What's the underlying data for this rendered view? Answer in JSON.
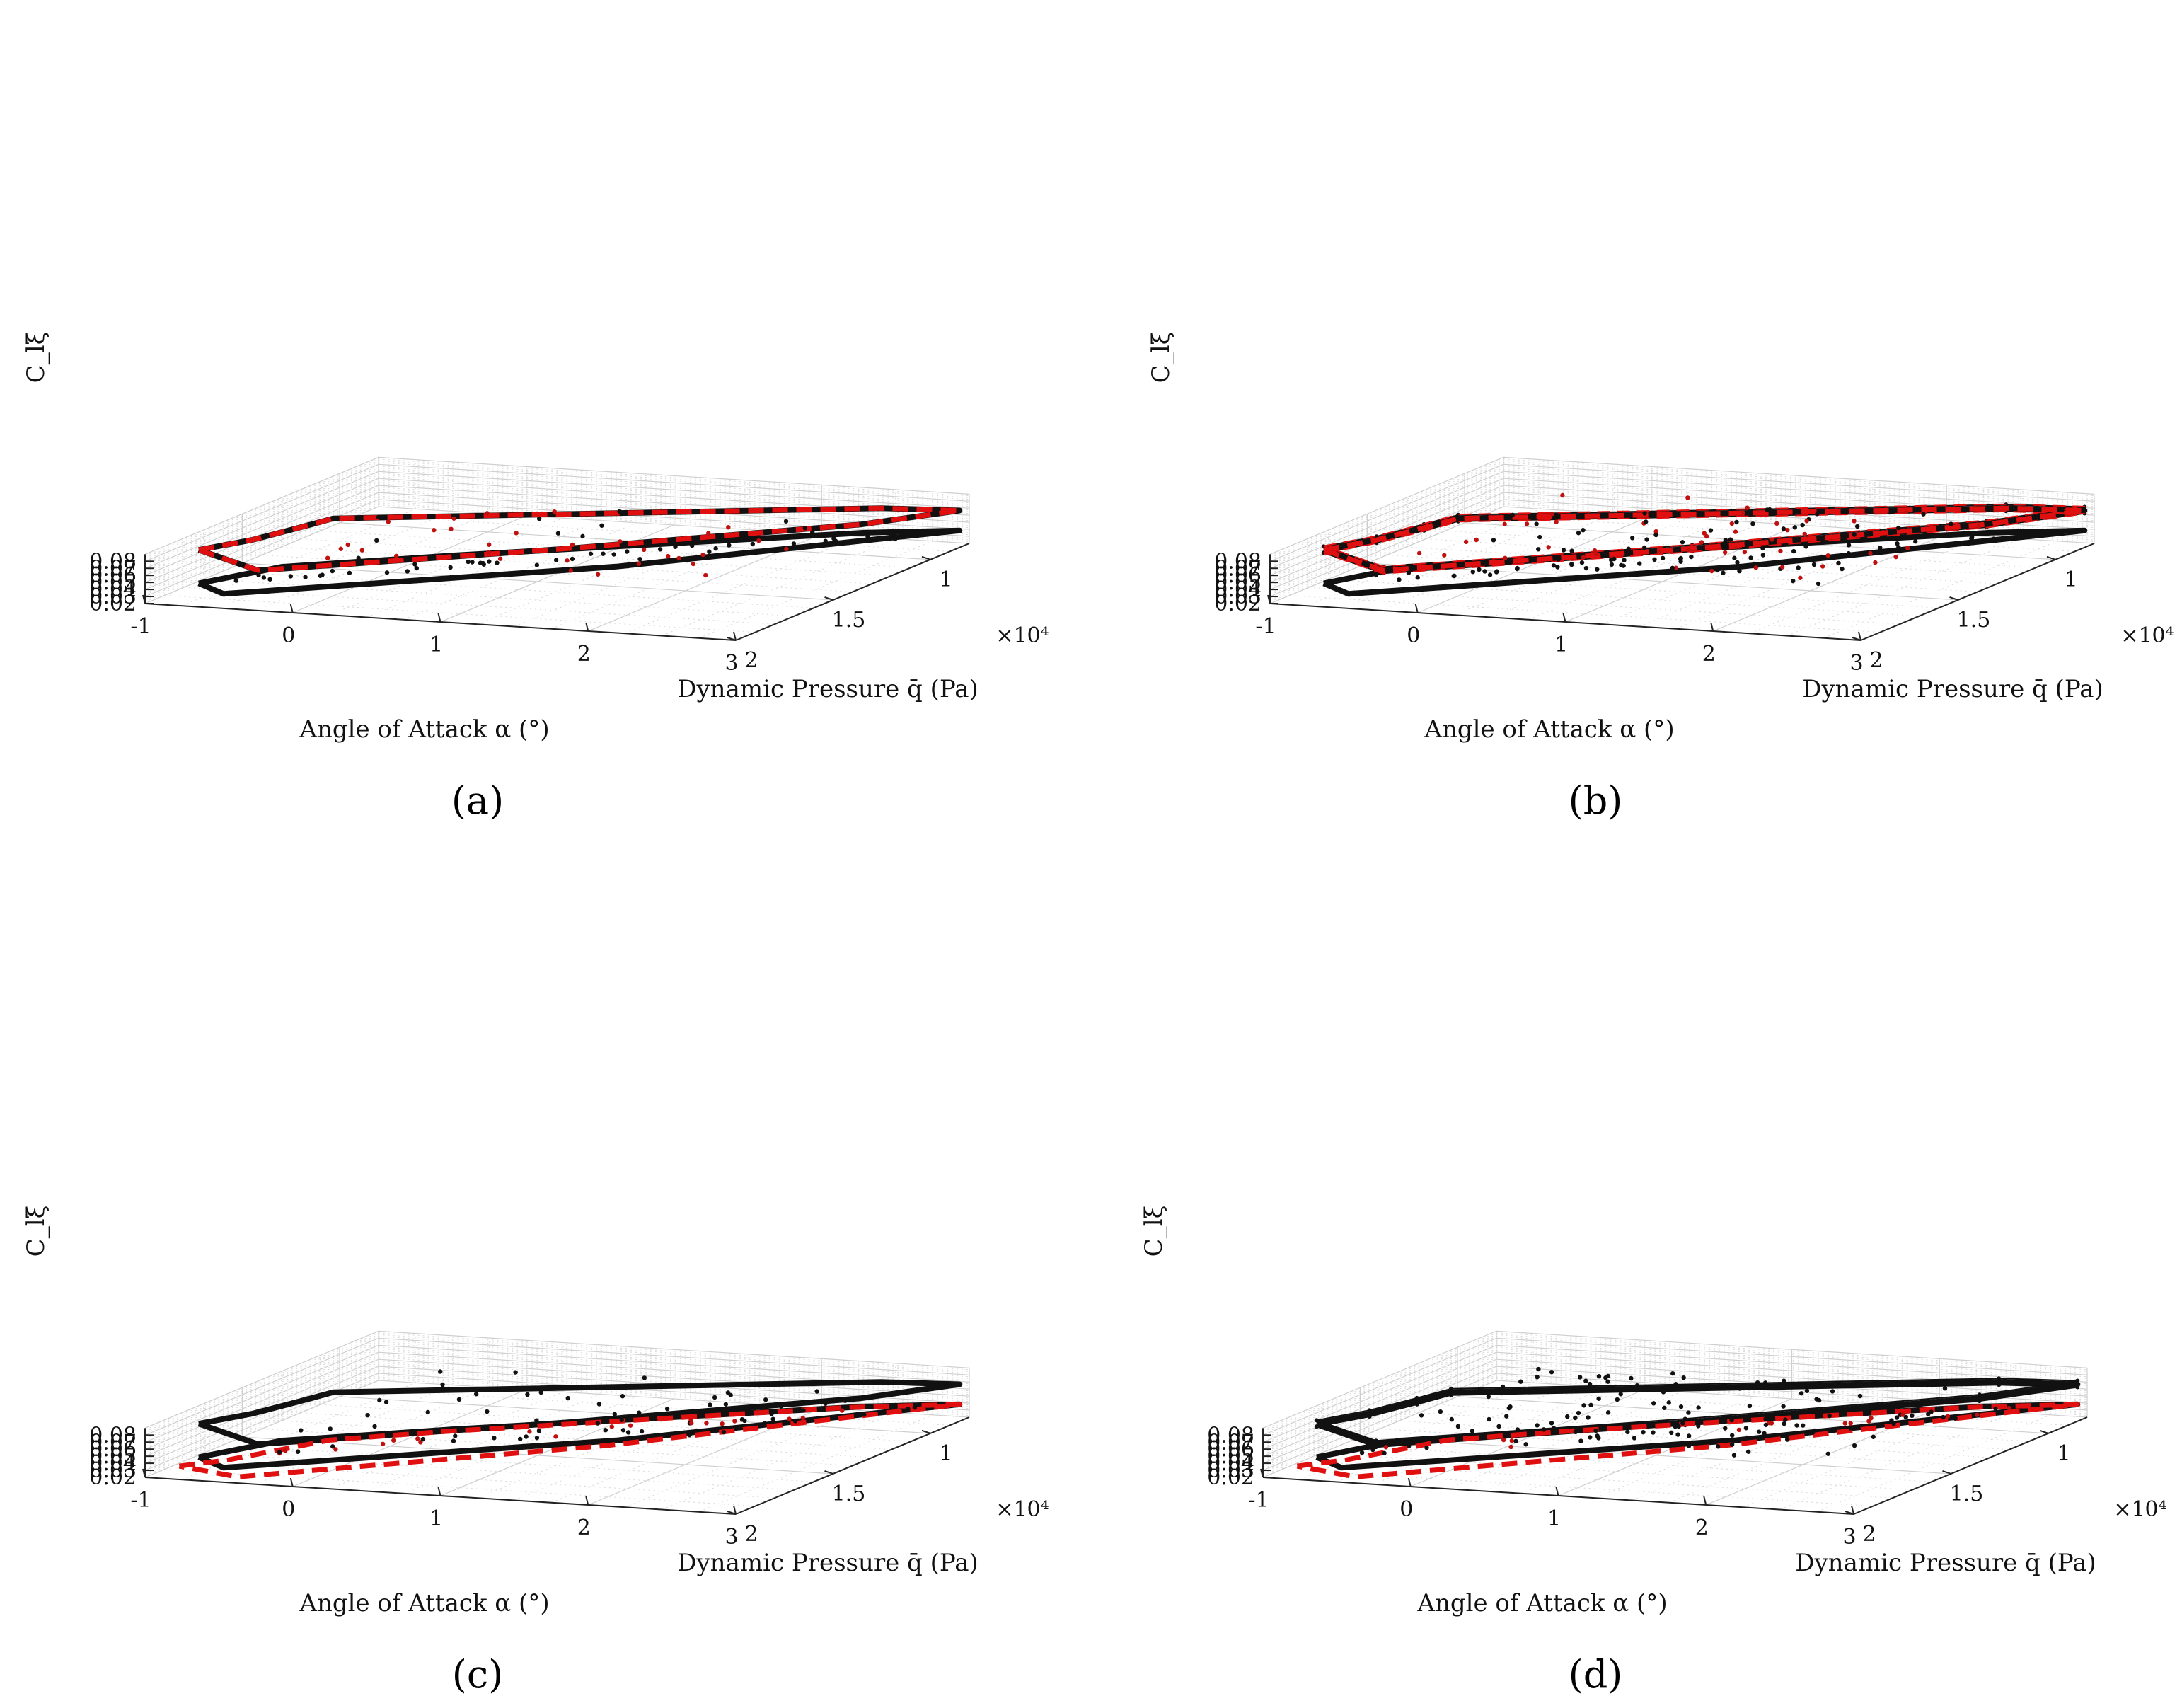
{
  "figure": {
    "panels": [
      "(a)",
      "(b)",
      "(c)",
      "(d)"
    ]
  },
  "chart_data": [
    {
      "panel": "(a)",
      "type": "scatter3d",
      "xlabel": "Angle of Attack α (°)",
      "ylabel": "Dynamic Pressure q̄ (Pa)",
      "zlabel": "C_lξ",
      "y_exponent": "×10⁴",
      "x_ticks": [
        "-1",
        "0",
        "1",
        "2",
        "3"
      ],
      "y_ticks": [
        "1",
        "1.5",
        "2"
      ],
      "z_ticks": [
        "0.02",
        "0.03",
        "0.04",
        "0.05",
        "0.06",
        "0.07",
        "0.08"
      ],
      "xlim": [
        -1,
        3
      ],
      "ylim": [
        0.8,
        2.0
      ],
      "zlim": [
        0.02,
        0.09
      ],
      "highlight": "upper",
      "upper_spread": 0.0015,
      "upper_points": 48,
      "lower_points": 40
    },
    {
      "panel": "(b)",
      "type": "scatter3d",
      "xlabel": "Angle of Attack α (°)",
      "ylabel": "Dynamic Pressure q̄ (Pa)",
      "zlabel": "C_lξ",
      "y_exponent": "×10⁴",
      "x_ticks": [
        "-1",
        "0",
        "1",
        "2",
        "3"
      ],
      "y_ticks": [
        "1",
        "1.5",
        "2"
      ],
      "z_ticks": [
        "0.02",
        "0.03",
        "0.04",
        "0.05",
        "0.06",
        "0.07",
        "0.08"
      ],
      "xlim": [
        -1,
        3
      ],
      "ylim": [
        0.8,
        2.0
      ],
      "zlim": [
        0.02,
        0.09
      ],
      "highlight": "upper-wide",
      "upper_spread": 0.009,
      "upper_points": 110,
      "lower_points": 40
    },
    {
      "panel": "(c)",
      "type": "scatter3d",
      "xlabel": "Angle of Attack α (°)",
      "ylabel": "Dynamic Pressure q̄ (Pa)",
      "zlabel": "C_lξ",
      "y_exponent": "×10⁴",
      "x_ticks": [
        "-1",
        "0",
        "1",
        "2",
        "3"
      ],
      "y_ticks": [
        "1",
        "1.5",
        "2"
      ],
      "z_ticks": [
        "0.02",
        "0.03",
        "0.04",
        "0.05",
        "0.06",
        "0.07",
        "0.08"
      ],
      "xlim": [
        -1,
        3
      ],
      "ylim": [
        0.8,
        2.0
      ],
      "zlim": [
        0.02,
        0.09
      ],
      "highlight": "lower",
      "upper_spread": 0.0015,
      "upper_points": 48,
      "lower_points": 40
    },
    {
      "panel": "(d)",
      "type": "scatter3d",
      "xlabel": "Angle of Attack α (°)",
      "ylabel": "Dynamic Pressure q̄ (Pa)",
      "zlabel": "C_lξ",
      "y_exponent": "×10⁴",
      "x_ticks": [
        "-1",
        "0",
        "1",
        "2",
        "3"
      ],
      "y_ticks": [
        "1",
        "1.5",
        "2"
      ],
      "z_ticks": [
        "0.02",
        "0.03",
        "0.04",
        "0.05",
        "0.06",
        "0.07",
        "0.08"
      ],
      "xlim": [
        -1,
        3
      ],
      "ylim": [
        0.8,
        2.0
      ],
      "zlim": [
        0.02,
        0.09
      ],
      "highlight": "lower",
      "upper_spread": 0.009,
      "upper_points": 110,
      "lower_points": 40
    }
  ],
  "shapes": {
    "upper_outline": [
      [
        -0.9,
        1.8,
        0.0745
      ],
      [
        -0.7,
        1.68,
        0.0775
      ],
      [
        -0.55,
        1.55,
        0.082
      ],
      [
        -0.45,
        1.45,
        0.085
      ],
      [
        2.6,
        0.95,
        0.082
      ],
      [
        3.0,
        0.85,
        0.0725
      ],
      [
        2.6,
        1.05,
        0.0705
      ],
      [
        1.2,
        1.5,
        0.0695
      ],
      [
        -0.3,
        1.95,
        0.0705
      ],
      [
        -0.9,
        1.8,
        0.0745
      ]
    ],
    "lower_outline": [
      [
        -0.9,
        1.8,
        0.027
      ],
      [
        -0.6,
        1.6,
        0.0315
      ],
      [
        0.3,
        1.4,
        0.0365
      ],
      [
        2.5,
        0.95,
        0.046
      ],
      [
        3.0,
        0.85,
        0.044
      ],
      [
        1.4,
        1.4,
        0.035
      ],
      [
        -0.6,
        1.9,
        0.0275
      ],
      [
        -0.9,
        1.8,
        0.027
      ]
    ],
    "lower_red_envelope": [
      [
        -0.9,
        1.9,
        0.0258
      ],
      [
        -0.7,
        1.8,
        0.0258
      ],
      [
        -0.45,
        1.65,
        0.03
      ],
      [
        -0.3,
        1.58,
        0.034
      ],
      [
        0.3,
        1.45,
        0.039
      ],
      [
        2.4,
        0.98,
        0.0465
      ],
      [
        3.0,
        0.85,
        0.044
      ],
      [
        1.4,
        1.45,
        0.0335
      ],
      [
        -0.4,
        1.98,
        0.0262
      ],
      [
        -0.9,
        1.9,
        0.0258
      ]
    ]
  }
}
